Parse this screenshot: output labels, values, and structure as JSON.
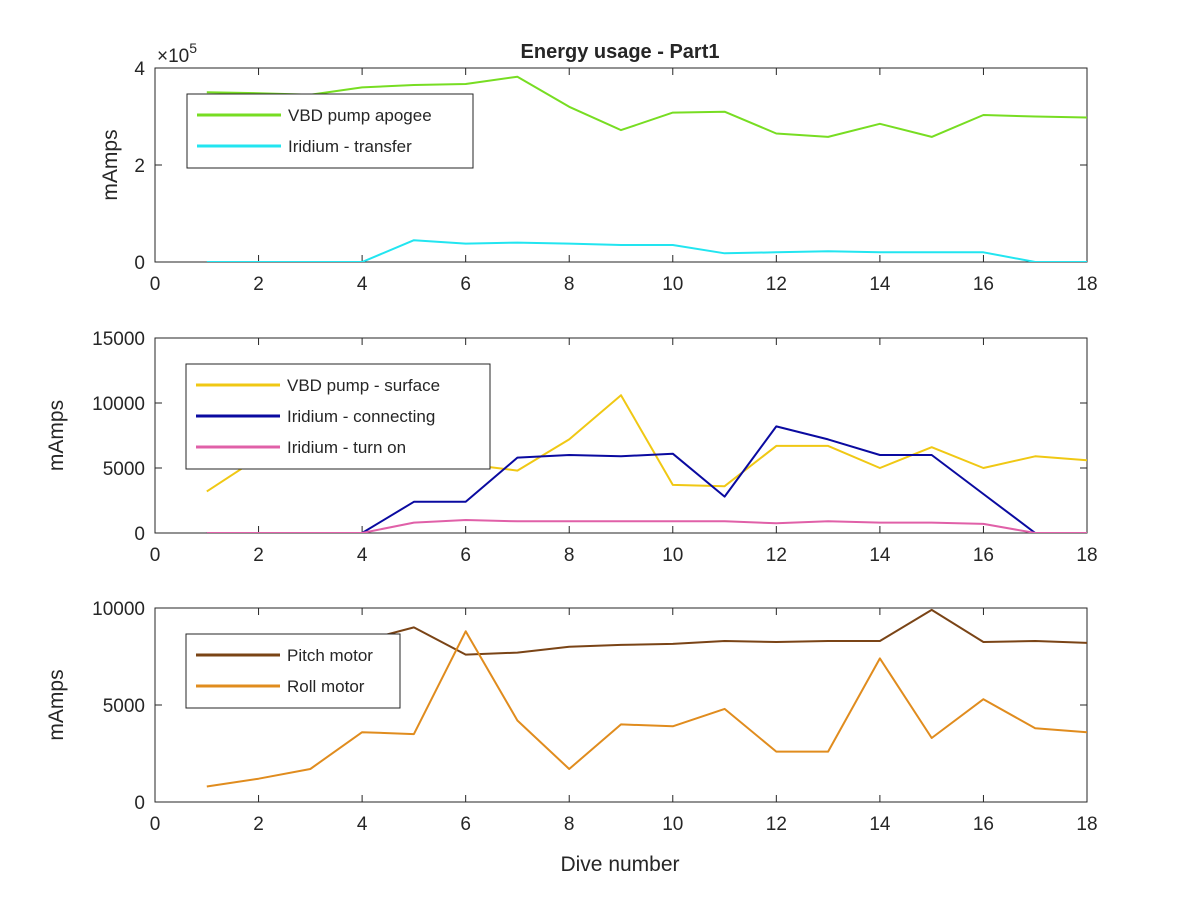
{
  "figure": {
    "title": "Energy usage - Part1",
    "xlabel": "Dive number"
  },
  "chart_data": [
    {
      "type": "line",
      "title": "Energy usage - Part1",
      "xlabel": "",
      "ylabel": "mAmps",
      "exponent_label": "×10",
      "exponent_power": "5",
      "xlim": [
        0,
        18
      ],
      "ylim": [
        0,
        400000
      ],
      "xticks": [
        0,
        2,
        4,
        6,
        8,
        10,
        12,
        14,
        16,
        18
      ],
      "yticks": [
        0,
        200000,
        400000
      ],
      "yticklabels": [
        "0",
        "2",
        "4"
      ],
      "legend": "upper-left",
      "x": [
        1,
        2,
        3,
        4,
        5,
        6,
        7,
        8,
        9,
        10,
        11,
        12,
        13,
        14,
        15,
        16,
        17,
        18
      ],
      "series": [
        {
          "name": "VBD pump apogee",
          "color": "#77DD22",
          "values": [
            350000,
            348000,
            345000,
            360000,
            365000,
            367000,
            382000,
            320000,
            272000,
            308000,
            310000,
            265000,
            258000,
            285000,
            258000,
            303000,
            300000,
            298000
          ]
        },
        {
          "name": "Iridium - transfer",
          "color": "#22E5F0",
          "values": [
            0,
            0,
            0,
            0,
            45000,
            38000,
            40000,
            38000,
            35000,
            35000,
            18000,
            20000,
            22000,
            20000,
            20000,
            20000,
            0,
            0
          ]
        }
      ]
    },
    {
      "type": "line",
      "title": "",
      "xlabel": "",
      "ylabel": "mAmps",
      "xlim": [
        0,
        18
      ],
      "ylim": [
        0,
        15000
      ],
      "xticks": [
        0,
        2,
        4,
        6,
        8,
        10,
        12,
        14,
        16,
        18
      ],
      "yticks": [
        0,
        5000,
        10000,
        15000
      ],
      "yticklabels": [
        "0",
        "5000",
        "10000",
        "15000"
      ],
      "legend": "upper-left",
      "x": [
        1,
        2,
        3,
        4,
        5,
        6,
        7,
        8,
        9,
        10,
        11,
        12,
        13,
        14,
        15,
        16,
        17,
        18
      ],
      "series": [
        {
          "name": "VBD pump - surface",
          "color": "#F0C814",
          "values": [
            3200,
            5800,
            5600,
            5500,
            5000,
            5300,
            4800,
            7200,
            10600,
            3700,
            3600,
            6700,
            6700,
            5000,
            6600,
            5000,
            5900,
            5600
          ]
        },
        {
          "name": "Iridium - connecting",
          "color": "#0A0AA0",
          "values": [
            0,
            0,
            0,
            0,
            2400,
            2400,
            5800,
            6000,
            5900,
            6100,
            2800,
            8200,
            7200,
            6000,
            6000,
            3000,
            0,
            0
          ]
        },
        {
          "name": "Iridium - turn on",
          "color": "#E060A8",
          "values": [
            0,
            0,
            0,
            0,
            800,
            1000,
            900,
            900,
            900,
            900,
            900,
            750,
            900,
            800,
            800,
            700,
            0,
            0
          ]
        }
      ]
    },
    {
      "type": "line",
      "title": "",
      "xlabel": "Dive number",
      "ylabel": "mAmps",
      "xlim": [
        0,
        18
      ],
      "ylim": [
        0,
        10000
      ],
      "xticks": [
        0,
        2,
        4,
        6,
        8,
        10,
        12,
        14,
        16,
        18
      ],
      "yticks": [
        0,
        5000,
        10000
      ],
      "yticklabels": [
        "0",
        "5000",
        "10000"
      ],
      "legend": "upper-left",
      "x": [
        1,
        2,
        3,
        4,
        5,
        6,
        7,
        8,
        9,
        10,
        11,
        12,
        13,
        14,
        15,
        16,
        17,
        18
      ],
      "series": [
        {
          "name": "Pitch motor",
          "color": "#7A4416",
          "values": [
            7000,
            7500,
            8000,
            8300,
            9000,
            7600,
            7700,
            8000,
            8100,
            8150,
            8300,
            8250,
            8300,
            8300,
            9900,
            8250,
            8300,
            8200
          ]
        },
        {
          "name": "Roll motor",
          "color": "#E08C1E",
          "values": [
            800,
            1200,
            1700,
            3600,
            3500,
            8800,
            4200,
            1700,
            4000,
            3900,
            4800,
            2600,
            2600,
            7400,
            3300,
            5300,
            3800,
            3600
          ]
        }
      ]
    }
  ]
}
